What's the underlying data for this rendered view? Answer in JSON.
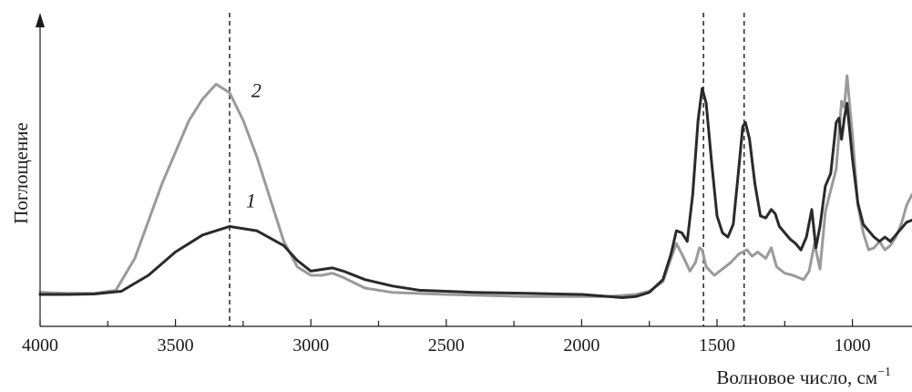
{
  "chart_data": {
    "type": "line",
    "title": "",
    "xlabel": "Волновое число, см",
    "xlabel_sup": "−1",
    "ylabel": "Поглощение",
    "xlim": [
      4000,
      780
    ],
    "ylim": [
      0,
      1
    ],
    "x_reversed": true,
    "grid": false,
    "y_ticks_shown": false,
    "x_ticks": [
      4000,
      3500,
      3000,
      2500,
      2000,
      1500,
      1000
    ],
    "x_tick_labels": [
      "4000",
      "3500",
      "3000",
      "2500",
      "2000",
      "1500",
      "1000"
    ],
    "reference_lines_x": [
      3300,
      1550,
      1400
    ],
    "series": [
      {
        "name": "2",
        "color": "#9a9a9a",
        "points": [
          [
            4000,
            0.04
          ],
          [
            3900,
            0.035
          ],
          [
            3800,
            0.035
          ],
          [
            3720,
            0.05
          ],
          [
            3650,
            0.2
          ],
          [
            3550,
            0.55
          ],
          [
            3450,
            0.85
          ],
          [
            3400,
            0.95
          ],
          [
            3350,
            1.02
          ],
          [
            3300,
            0.98
          ],
          [
            3250,
            0.85
          ],
          [
            3200,
            0.68
          ],
          [
            3150,
            0.48
          ],
          [
            3100,
            0.28
          ],
          [
            3050,
            0.16
          ],
          [
            3000,
            0.12
          ],
          [
            2960,
            0.12
          ],
          [
            2920,
            0.13
          ],
          [
            2880,
            0.11
          ],
          [
            2800,
            0.06
          ],
          [
            2700,
            0.04
          ],
          [
            2500,
            0.03
          ],
          [
            2200,
            0.02
          ],
          [
            2000,
            0.02
          ],
          [
            1900,
            0.02
          ],
          [
            1800,
            0.03
          ],
          [
            1750,
            0.045
          ],
          [
            1700,
            0.09
          ],
          [
            1670,
            0.2
          ],
          [
            1650,
            0.27
          ],
          [
            1630,
            0.22
          ],
          [
            1600,
            0.14
          ],
          [
            1580,
            0.18
          ],
          [
            1565,
            0.25
          ],
          [
            1555,
            0.24
          ],
          [
            1540,
            0.16
          ],
          [
            1510,
            0.12
          ],
          [
            1480,
            0.15
          ],
          [
            1450,
            0.18
          ],
          [
            1420,
            0.22
          ],
          [
            1390,
            0.24
          ],
          [
            1370,
            0.21
          ],
          [
            1350,
            0.23
          ],
          [
            1320,
            0.2
          ],
          [
            1300,
            0.25
          ],
          [
            1280,
            0.16
          ],
          [
            1250,
            0.13
          ],
          [
            1220,
            0.12
          ],
          [
            1200,
            0.11
          ],
          [
            1180,
            0.1
          ],
          [
            1160,
            0.14
          ],
          [
            1140,
            0.27
          ],
          [
            1120,
            0.15
          ],
          [
            1100,
            0.42
          ],
          [
            1080,
            0.52
          ],
          [
            1060,
            0.62
          ],
          [
            1040,
            0.94
          ],
          [
            1030,
            0.91
          ],
          [
            1020,
            1.06
          ],
          [
            1000,
            0.78
          ],
          [
            980,
            0.45
          ],
          [
            960,
            0.32
          ],
          [
            940,
            0.24
          ],
          [
            920,
            0.25
          ],
          [
            900,
            0.28
          ],
          [
            880,
            0.24
          ],
          [
            860,
            0.26
          ],
          [
            840,
            0.3
          ],
          [
            820,
            0.36
          ],
          [
            800,
            0.45
          ],
          [
            780,
            0.5
          ]
        ]
      },
      {
        "name": "1",
        "color": "#2a2a2a",
        "points": [
          [
            4000,
            0.03
          ],
          [
            3900,
            0.03
          ],
          [
            3800,
            0.032
          ],
          [
            3700,
            0.045
          ],
          [
            3600,
            0.12
          ],
          [
            3500,
            0.23
          ],
          [
            3400,
            0.31
          ],
          [
            3300,
            0.35
          ],
          [
            3200,
            0.33
          ],
          [
            3100,
            0.26
          ],
          [
            3050,
            0.19
          ],
          [
            3000,
            0.14
          ],
          [
            2950,
            0.15
          ],
          [
            2920,
            0.155
          ],
          [
            2880,
            0.14
          ],
          [
            2800,
            0.1
          ],
          [
            2700,
            0.07
          ],
          [
            2600,
            0.05
          ],
          [
            2400,
            0.04
          ],
          [
            2200,
            0.035
          ],
          [
            2000,
            0.03
          ],
          [
            1900,
            0.02
          ],
          [
            1850,
            0.015
          ],
          [
            1800,
            0.02
          ],
          [
            1750,
            0.04
          ],
          [
            1700,
            0.1
          ],
          [
            1670,
            0.22
          ],
          [
            1650,
            0.33
          ],
          [
            1630,
            0.32
          ],
          [
            1610,
            0.28
          ],
          [
            1590,
            0.5
          ],
          [
            1570,
            0.85
          ],
          [
            1555,
            1.0
          ],
          [
            1540,
            0.93
          ],
          [
            1520,
            0.65
          ],
          [
            1500,
            0.4
          ],
          [
            1480,
            0.32
          ],
          [
            1460,
            0.3
          ],
          [
            1440,
            0.36
          ],
          [
            1420,
            0.62
          ],
          [
            1405,
            0.82
          ],
          [
            1395,
            0.84
          ],
          [
            1380,
            0.76
          ],
          [
            1360,
            0.55
          ],
          [
            1340,
            0.4
          ],
          [
            1320,
            0.39
          ],
          [
            1300,
            0.43
          ],
          [
            1285,
            0.41
          ],
          [
            1270,
            0.35
          ],
          [
            1250,
            0.32
          ],
          [
            1230,
            0.29
          ],
          [
            1210,
            0.27
          ],
          [
            1190,
            0.24
          ],
          [
            1170,
            0.3
          ],
          [
            1150,
            0.43
          ],
          [
            1135,
            0.25
          ],
          [
            1120,
            0.35
          ],
          [
            1100,
            0.54
          ],
          [
            1080,
            0.6
          ],
          [
            1060,
            0.84
          ],
          [
            1050,
            0.86
          ],
          [
            1040,
            0.76
          ],
          [
            1030,
            0.86
          ],
          [
            1020,
            0.93
          ],
          [
            1000,
            0.67
          ],
          [
            980,
            0.46
          ],
          [
            960,
            0.36
          ],
          [
            940,
            0.33
          ],
          [
            920,
            0.3
          ],
          [
            900,
            0.28
          ],
          [
            880,
            0.3
          ],
          [
            860,
            0.28
          ],
          [
            840,
            0.31
          ],
          [
            820,
            0.34
          ],
          [
            800,
            0.37
          ],
          [
            780,
            0.38
          ]
        ]
      }
    ],
    "curve_label_positions": [
      {
        "text": "2",
        "x": 3220,
        "y": 0.96
      },
      {
        "text": "1",
        "x": 3240,
        "y": 0.44
      }
    ]
  }
}
